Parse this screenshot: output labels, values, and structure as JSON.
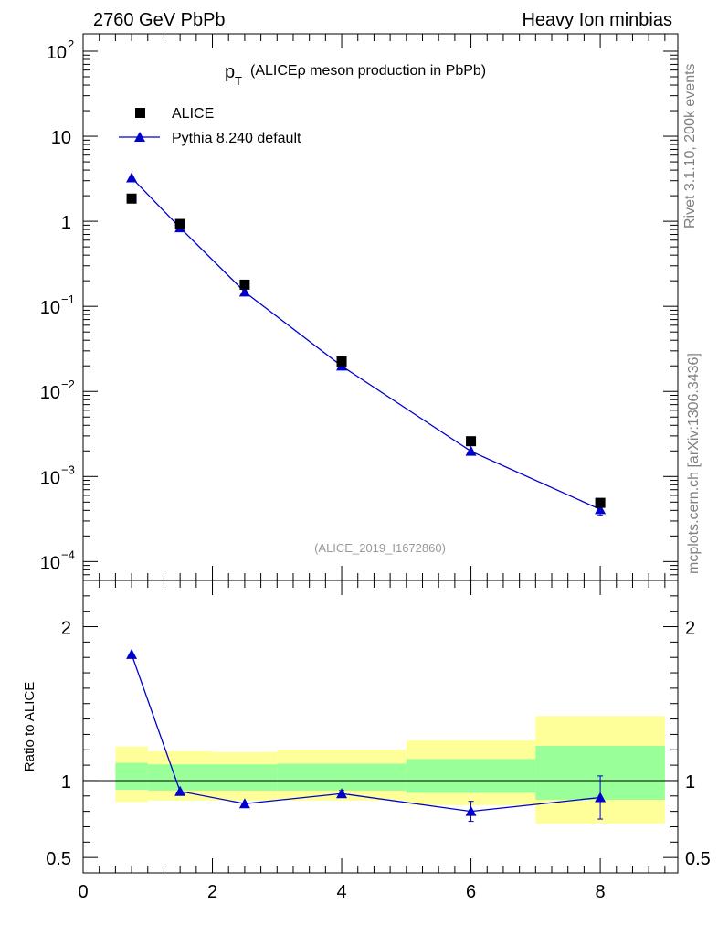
{
  "header": {
    "left": "2760 GeV PbPb",
    "right": "Heavy Ion minbias"
  },
  "side_text": {
    "top": "Rivet 3.1.10,  200k events",
    "bottom": "mcplots.cern.ch [arXiv:1306.3436]"
  },
  "chart_data": {
    "type": "scatter",
    "title_main": "p",
    "title_sub": "T",
    "title_rest": "(ALICEρ meson production in PbPb)",
    "watermark": "(ALICE_2019_I1672860)",
    "upper": {
      "yscale": "log",
      "ylim": [
        6e-05,
        160
      ],
      "y_ticks": [
        {
          "value": 0.0001,
          "base": "10",
          "exp": "−4"
        },
        {
          "value": 0.001,
          "base": "10",
          "exp": "−3"
        },
        {
          "value": 0.01,
          "base": "10",
          "exp": "−2"
        },
        {
          "value": 0.1,
          "base": "10",
          "exp": "−1"
        },
        {
          "value": 1,
          "base": "1",
          "exp": ""
        },
        {
          "value": 10,
          "base": "10",
          "exp": ""
        },
        {
          "value": 100,
          "base": "10",
          "exp": "2"
        }
      ],
      "legend_placement": "top-left",
      "series": [
        {
          "name": "ALICE",
          "marker": "square",
          "color": "#000000",
          "x": [
            0.75,
            1.5,
            2.5,
            4.0,
            6.0,
            8.0
          ],
          "y": [
            1.85,
            0.93,
            0.18,
            0.0225,
            0.0026,
            0.00049
          ]
        },
        {
          "name": "Pythia 8.240 default",
          "marker": "triangle",
          "color": "#0000cc",
          "x": [
            0.75,
            1.5,
            2.5,
            4.0,
            6.0,
            8.0
          ],
          "y": [
            3.25,
            0.84,
            0.148,
            0.0199,
            0.00198,
            0.00041
          ],
          "yerr_low": [
            0,
            0,
            0,
            0,
            0,
            6e-05
          ],
          "yerr_high": [
            0,
            0,
            0,
            0,
            0,
            6e-05
          ]
        }
      ]
    },
    "lower": {
      "ylabel": "Ratio to ALICE",
      "ylim": [
        0.4,
        2.3
      ],
      "y_ticks": [
        {
          "value": 0.5,
          "label": "0.5"
        },
        {
          "value": 1,
          "label": "1"
        },
        {
          "value": 2,
          "label": "2"
        }
      ],
      "reference_line": 1,
      "bands": [
        {
          "x0": 0.5,
          "x1": 1.0,
          "green_lo": 0.94,
          "green_hi": 1.115,
          "yellow_lo": 0.86,
          "yellow_hi": 1.22
        },
        {
          "x0": 1.0,
          "x1": 2.0,
          "green_lo": 0.935,
          "green_hi": 1.105,
          "yellow_lo": 0.87,
          "yellow_hi": 1.19
        },
        {
          "x0": 2.0,
          "x1": 3.0,
          "green_lo": 0.935,
          "green_hi": 1.105,
          "yellow_lo": 0.87,
          "yellow_hi": 1.185
        },
        {
          "x0": 3.0,
          "x1": 5.0,
          "green_lo": 0.935,
          "green_hi": 1.11,
          "yellow_lo": 0.87,
          "yellow_hi": 1.2
        },
        {
          "x0": 5.0,
          "x1": 7.0,
          "green_lo": 0.92,
          "green_hi": 1.14,
          "yellow_lo": 0.84,
          "yellow_hi": 1.26
        },
        {
          "x0": 7.0,
          "x1": 9.0,
          "green_lo": 0.875,
          "green_hi": 1.225,
          "yellow_lo": 0.72,
          "yellow_hi": 1.42
        }
      ],
      "ratio": {
        "x": [
          0.75,
          1.5,
          2.5,
          4.0,
          6.0,
          8.0
        ],
        "y": [
          1.82,
          0.93,
          0.85,
          0.915,
          0.8,
          0.89
        ],
        "yerr": [
          0,
          0,
          0,
          0.02,
          0.065,
          0.14
        ]
      }
    },
    "xlim": [
      0,
      9.2
    ],
    "x_ticks": [
      {
        "value": 0,
        "label": "0"
      },
      {
        "value": 2,
        "label": "2"
      },
      {
        "value": 4,
        "label": "4"
      },
      {
        "value": 6,
        "label": "6"
      },
      {
        "value": 8,
        "label": "8"
      }
    ]
  }
}
